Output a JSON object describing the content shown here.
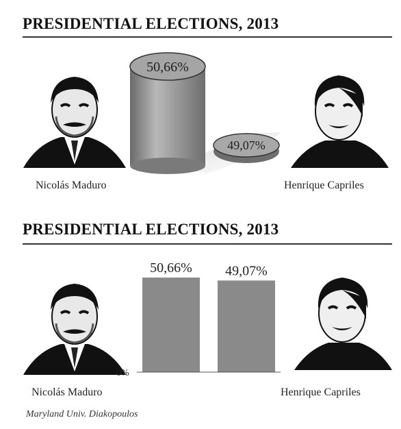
{
  "chart_data": [
    {
      "type": "cylinder-pictogram",
      "title": "PRESIDENTIAL ELECTIONS, 2013",
      "categories": [
        "Nicolás Maduro",
        "Henrique Capriles"
      ],
      "values": [
        50.66,
        49.07
      ],
      "value_labels": [
        "50,66%",
        "49,07%"
      ]
    },
    {
      "type": "bar",
      "title": "PRESIDENTIAL ELECTIONS, 2013",
      "categories": [
        "Nicolás Maduro",
        "Henrique Capriles"
      ],
      "values": [
        50.66,
        49.07
      ],
      "value_labels": [
        "50,66%",
        "49,07%"
      ],
      "ylim": [
        0,
        50.66
      ],
      "baseline_label": "0%"
    }
  ],
  "colors": {
    "bar": "#8a8a8a",
    "cylinder_body": "#9a9a9a",
    "text": "#1a1a1a"
  },
  "source": "Maryland Univ. Diakopoulos"
}
